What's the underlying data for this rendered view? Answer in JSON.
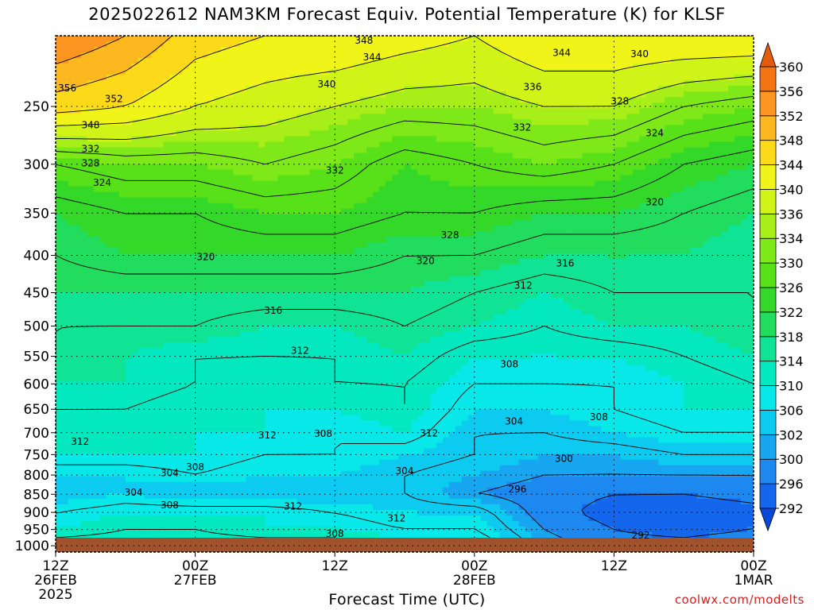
{
  "chart_data": {
    "type": "heatmap",
    "title": "2025022612 NAM3KM Forecast Equiv. Potential Temperature (K) for KLSF",
    "xlabel": "Forecast Time (UTC)",
    "ylabel": "",
    "credit": "coolwx.com/modelts",
    "y_log_scale": true,
    "y_inverted": true,
    "ylim": [
      1020,
      200
    ],
    "y_ticks": [
      250,
      300,
      350,
      400,
      450,
      500,
      550,
      600,
      650,
      700,
      750,
      800,
      850,
      900,
      950,
      1000
    ],
    "x_hours": [
      0,
      12,
      24,
      36,
      48,
      60
    ],
    "x_ticks": [
      {
        "hour": 0,
        "line1": "12Z",
        "line2": "26FEB",
        "line3": "2025"
      },
      {
        "hour": 12,
        "line1": "00Z",
        "line2": "27FEB",
        "line3": ""
      },
      {
        "hour": 24,
        "line1": "12Z",
        "line2": "",
        "line3": ""
      },
      {
        "hour": 36,
        "line1": "00Z",
        "line2": "28FEB",
        "line3": ""
      },
      {
        "hour": 48,
        "line1": "12Z",
        "line2": "",
        "line3": ""
      },
      {
        "hour": 60,
        "line1": "00Z",
        "line2": "1MAR",
        "line3": ""
      }
    ],
    "contour_interval": 4,
    "colorbar": {
      "levels": [
        292,
        296,
        300,
        302,
        306,
        310,
        314,
        318,
        322,
        326,
        330,
        334,
        336,
        340,
        344,
        348,
        352,
        356,
        360
      ],
      "colors": [
        "#0848d8",
        "#1466ec",
        "#1d88f0",
        "#18a6f0",
        "#0ccaf0",
        "#08e8e8",
        "#04e8c0",
        "#10e494",
        "#22dc5e",
        "#34d828",
        "#58e018",
        "#7ee818",
        "#a8ee18",
        "#d0f418",
        "#f0f418",
        "#fcda1a",
        "#fcb81e",
        "#fc9620",
        "#f47414",
        "#e25c0e"
      ]
    },
    "pressure_levels": [
      200,
      250,
      300,
      350,
      400,
      450,
      500,
      550,
      600,
      650,
      700,
      750,
      800,
      850,
      900,
      950,
      1000
    ],
    "field_hour_columns": [
      0,
      6,
      12,
      18,
      24,
      30,
      36,
      42,
      48,
      54,
      60
    ],
    "field": [
      [
        356,
        352,
        346,
        344,
        344,
        342,
        340,
        344,
        344,
        344,
        344
      ],
      [
        346,
        344,
        340,
        338,
        336,
        334,
        334,
        336,
        336,
        332,
        330
      ],
      [
        328,
        330,
        330,
        332,
        330,
        326,
        328,
        330,
        328,
        324,
        322
      ],
      [
        322,
        324,
        324,
        326,
        326,
        324,
        324,
        322,
        322,
        320,
        318
      ],
      [
        320,
        322,
        322,
        322,
        322,
        320,
        320,
        318,
        318,
        318,
        316
      ],
      [
        318,
        318,
        318,
        318,
        318,
        318,
        316,
        314,
        316,
        316,
        316
      ],
      [
        316,
        316,
        316,
        314,
        314,
        316,
        314,
        312,
        314,
        314,
        316
      ],
      [
        316,
        314,
        312,
        312,
        312,
        314,
        310,
        310,
        310,
        312,
        314
      ],
      [
        314,
        314,
        312,
        310,
        312,
        312,
        308,
        308,
        308,
        310,
        312
      ],
      [
        312,
        312,
        310,
        310,
        310,
        312,
        306,
        306,
        308,
        310,
        310
      ],
      [
        312,
        310,
        310,
        310,
        308,
        310,
        304,
        304,
        306,
        308,
        308
      ],
      [
        310,
        310,
        310,
        308,
        308,
        306,
        304,
        302,
        302,
        304,
        304
      ],
      [
        306,
        306,
        308,
        306,
        306,
        304,
        302,
        300,
        300,
        300,
        300
      ],
      [
        304,
        306,
        304,
        304,
        304,
        304,
        300,
        298,
        296,
        296,
        298
      ],
      [
        308,
        310,
        310,
        310,
        308,
        306,
        306,
        298,
        294,
        292,
        294
      ],
      [
        310,
        312,
        312,
        310,
        310,
        308,
        308,
        300,
        296,
        294,
        296
      ],
      [
        314,
        314,
        314,
        314,
        314,
        312,
        312,
        302,
        298,
        298,
        300
      ]
    ],
    "contour_labels": [
      {
        "text": "348",
        "hour": 26.5,
        "p": 203
      },
      {
        "text": "344",
        "hour": 27.2,
        "p": 214
      },
      {
        "text": "344",
        "hour": 43.5,
        "p": 211
      },
      {
        "text": "340",
        "hour": 50.2,
        "p": 212
      },
      {
        "text": "356",
        "hour": 1.0,
        "p": 236
      },
      {
        "text": "352",
        "hour": 5.0,
        "p": 244
      },
      {
        "text": "340",
        "hour": 23.3,
        "p": 233
      },
      {
        "text": "336",
        "hour": 41.0,
        "p": 235
      },
      {
        "text": "328",
        "hour": 48.5,
        "p": 246
      },
      {
        "text": "348",
        "hour": 3.0,
        "p": 265
      },
      {
        "text": "332",
        "hour": 40.1,
        "p": 267
      },
      {
        "text": "324",
        "hour": 51.5,
        "p": 272
      },
      {
        "text": "332",
        "hour": 3.0,
        "p": 286
      },
      {
        "text": "328",
        "hour": 3.0,
        "p": 299
      },
      {
        "text": "332",
        "hour": 24.0,
        "p": 306
      },
      {
        "text": "324",
        "hour": 4.0,
        "p": 318
      },
      {
        "text": "320",
        "hour": 51.5,
        "p": 338
      },
      {
        "text": "328",
        "hour": 33.9,
        "p": 375
      },
      {
        "text": "320",
        "hour": 12.9,
        "p": 402
      },
      {
        "text": "320",
        "hour": 31.8,
        "p": 407
      },
      {
        "text": "316",
        "hour": 43.8,
        "p": 410
      },
      {
        "text": "312",
        "hour": 40.2,
        "p": 440
      },
      {
        "text": "316",
        "hour": 18.7,
        "p": 476
      },
      {
        "text": "312",
        "hour": 21.0,
        "p": 540
      },
      {
        "text": "308",
        "hour": 39.0,
        "p": 564
      },
      {
        "text": "304",
        "hour": 39.4,
        "p": 675
      },
      {
        "text": "308",
        "hour": 46.7,
        "p": 666
      },
      {
        "text": "312",
        "hour": 2.1,
        "p": 720
      },
      {
        "text": "312",
        "hour": 18.2,
        "p": 706
      },
      {
        "text": "308",
        "hour": 23.0,
        "p": 702
      },
      {
        "text": "312",
        "hour": 32.1,
        "p": 701
      },
      {
        "text": "300",
        "hour": 43.7,
        "p": 760
      },
      {
        "text": "308",
        "hour": 12.0,
        "p": 780
      },
      {
        "text": "304",
        "hour": 9.8,
        "p": 795
      },
      {
        "text": "304",
        "hour": 30.0,
        "p": 790
      },
      {
        "text": "304",
        "hour": 6.7,
        "p": 845
      },
      {
        "text": "296",
        "hour": 39.7,
        "p": 837
      },
      {
        "text": "308",
        "hour": 9.8,
        "p": 880
      },
      {
        "text": "312",
        "hour": 20.4,
        "p": 883
      },
      {
        "text": "312",
        "hour": 29.3,
        "p": 917
      },
      {
        "text": "308",
        "hour": 24.0,
        "p": 963
      },
      {
        "text": "292",
        "hour": 50.3,
        "p": 968
      }
    ]
  }
}
